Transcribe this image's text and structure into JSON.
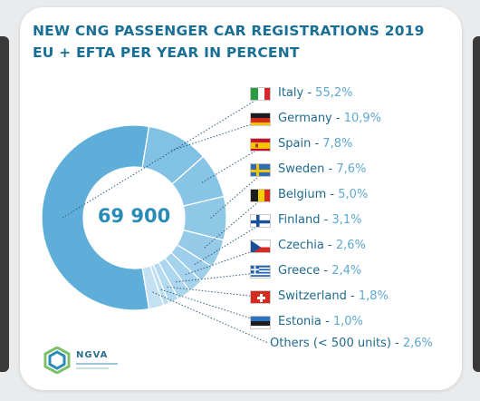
{
  "title_lines": [
    "NEW CNG PASSENGER CAR REGISTRATIONS 2019",
    "EU + EFTA PER YEAR IN PERCENT"
  ],
  "center_total": "69 900",
  "logo_text": "NGVA",
  "colors": {
    "slice_main": "#5eaed9",
    "slice_other": "#79bde2",
    "title": "#1a6f96",
    "label": "#1f6a8c",
    "value": "#5fa8cf"
  },
  "legend": [
    {
      "country": "Italy",
      "value": "55,2%",
      "flag": "italy-flag-icon"
    },
    {
      "country": "Germany",
      "value": "10,9%",
      "flag": "germany-flag-icon"
    },
    {
      "country": "Spain",
      "value": "7,8%",
      "flag": "spain-flag-icon"
    },
    {
      "country": "Sweden",
      "value": "7,6%",
      "flag": "sweden-flag-icon"
    },
    {
      "country": "Belgium",
      "value": "5,0%",
      "flag": "belgium-flag-icon"
    },
    {
      "country": "Finland",
      "value": "3,1%",
      "flag": "finland-flag-icon"
    },
    {
      "country": "Czechia",
      "value": "2,6%",
      "flag": "czechia-flag-icon"
    },
    {
      "country": "Greece",
      "value": "2,4%",
      "flag": "greece-flag-icon"
    },
    {
      "country": "Switzerland",
      "value": "1,8%",
      "flag": "switzerland-flag-icon"
    },
    {
      "country": "Estonia",
      "value": "1,0%",
      "flag": "estonia-flag-icon"
    }
  ],
  "others": {
    "label": "Others (< 500 units)",
    "value": "2,6%"
  },
  "chart_data": {
    "type": "pie",
    "title": "NEW CNG PASSENGER CAR REGISTRATIONS 2019 EU + EFTA PER YEAR IN PERCENT",
    "center_label": "69 900",
    "categories": [
      "Italy",
      "Germany",
      "Spain",
      "Sweden",
      "Belgium",
      "Finland",
      "Czechia",
      "Greece",
      "Switzerland",
      "Estonia",
      "Others (< 500 units)"
    ],
    "values": [
      55.2,
      10.9,
      7.8,
      7.6,
      5.0,
      3.1,
      2.6,
      2.4,
      1.8,
      1.0,
      2.6
    ],
    "legend": "right"
  }
}
